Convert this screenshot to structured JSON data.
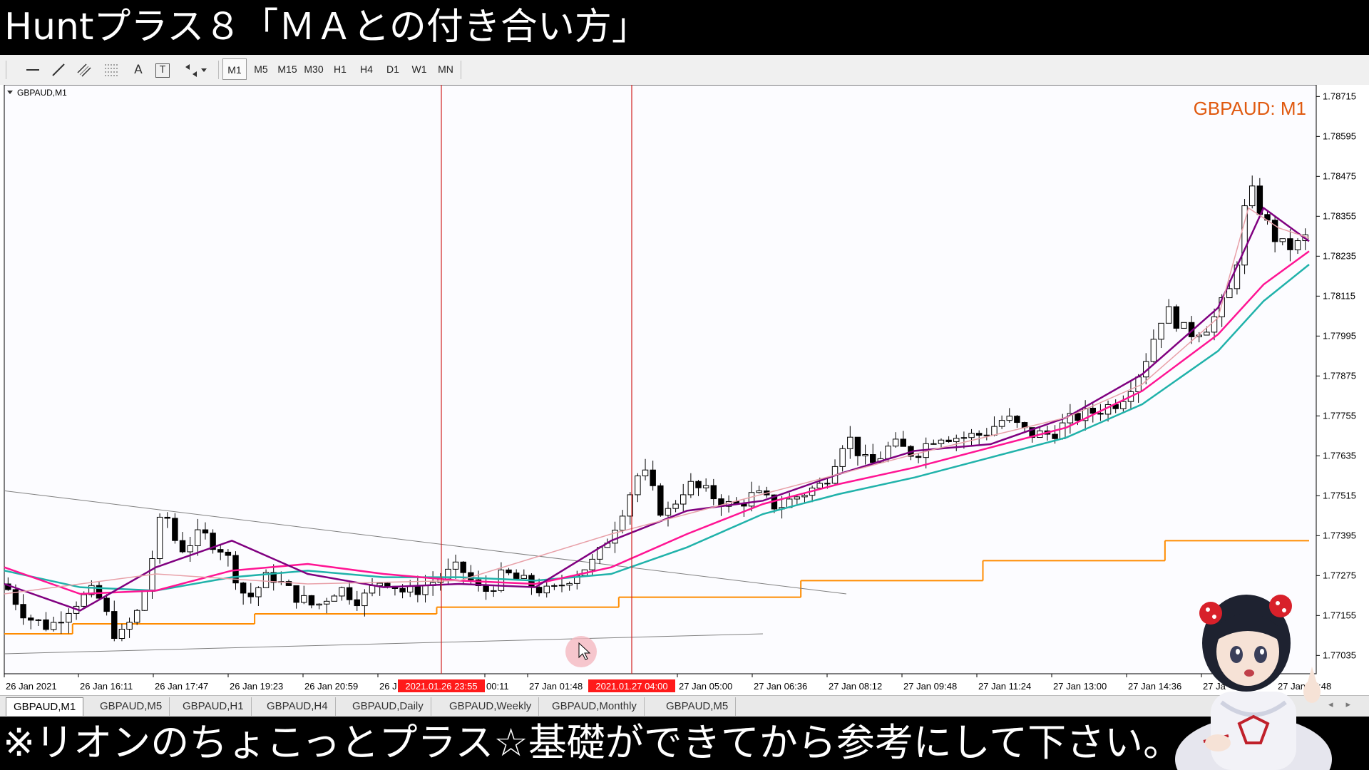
{
  "banner_top": "Huntプラス８「ＭＡとの付き合い方」",
  "banner_bottom": "※リオンのちょこっとプラス☆基礎ができてから参考にして下さい。",
  "toolbar": {
    "tools": [
      "cursor-icon",
      "horizontal-line-icon",
      "trendline-icon",
      "channel-icon",
      "fibonacci-icon",
      "text-icon",
      "text-label-icon",
      "arrows-icon"
    ],
    "text_tool": "A",
    "label_tool": "T",
    "timeframes": [
      "M1",
      "M5",
      "M15",
      "M30",
      "H1",
      "H4",
      "D1",
      "W1",
      "MN"
    ],
    "active_timeframe": "M1"
  },
  "chart_window_title": "GBPAUD,M1",
  "tabs": [
    "GBPAUD,M1",
    "GBPAUD,M5",
    "GBPAUD,H1",
    "GBPAUD,H4",
    "GBPAUD,Daily",
    "GBPAUD,Weekly",
    "GBPAUD,Monthly",
    "GBPAUD,M5"
  ],
  "active_tab": 0,
  "colors": {
    "candles": "#000000",
    "ma_fast": "#e8a0a8",
    "ma_mid": "#800080",
    "ma_slow": "#ff1493",
    "ma_slowest": "#20b2aa",
    "daily_open": "#ff8c00",
    "vline": "#d02020",
    "trendline": "#808080",
    "symbol_label": "#e05a10",
    "highlight_label_bg": "#ff1a1a"
  },
  "chart_data": {
    "type": "candlestick",
    "symbol": "GBPAUD",
    "timeframe": "M1",
    "symbol_label": "GBPAUD: M1",
    "ylim": [
      1.7698,
      1.7875
    ],
    "y_ticks": [
      "1.78715",
      "1.78595",
      "1.78475",
      "1.78355",
      "1.78235",
      "1.78115",
      "1.77995",
      "1.77875",
      "1.77755",
      "1.77635",
      "1.77515",
      "1.77395",
      "1.77275",
      "1.77155",
      "1.77035"
    ],
    "x_ticks": [
      "26 Jan 2021",
      "26 Jan 16:11",
      "26 Jan 17:47",
      "26 Jan 19:23",
      "26 Jan 20:59",
      "26 J",
      "00:11",
      "27 Jan 01:48",
      "27 Jan 05:00",
      "27 Jan 06:36",
      "27 Jan 08:12",
      "27 Jan 09:48",
      "27 Jan 11:24",
      "27 Jan 13:00",
      "27 Jan 14:36",
      "27 Ja",
      "27 Jan 17:48"
    ],
    "highlighted_times": [
      "2021.01.26 23:55",
      "2021.01.27 04:00"
    ],
    "price_path": [
      [
        0,
        1.7725
      ],
      [
        3,
        1.7715
      ],
      [
        6,
        1.7712
      ],
      [
        9,
        1.7719
      ],
      [
        12,
        1.7723
      ],
      [
        15,
        1.7708
      ],
      [
        18,
        1.7718
      ],
      [
        21,
        1.7748
      ],
      [
        23,
        1.7735
      ],
      [
        26,
        1.774
      ],
      [
        29,
        1.7735
      ],
      [
        32,
        1.772
      ],
      [
        35,
        1.7728
      ],
      [
        38,
        1.7722
      ],
      [
        41,
        1.7718
      ],
      [
        44,
        1.7724
      ],
      [
        47,
        1.772
      ],
      [
        50,
        1.7727
      ],
      [
        53,
        1.7722
      ],
      [
        56,
        1.7725
      ],
      [
        60,
        1.773
      ],
      [
        63,
        1.7722
      ],
      [
        66,
        1.7728
      ],
      [
        69,
        1.7725
      ],
      [
        72,
        1.7722
      ],
      [
        75,
        1.7728
      ],
      [
        78,
        1.7732
      ],
      [
        81,
        1.7745
      ],
      [
        84,
        1.776
      ],
      [
        87,
        1.7745
      ],
      [
        90,
        1.7755
      ],
      [
        93,
        1.7752
      ],
      [
        96,
        1.7748
      ],
      [
        99,
        1.7752
      ],
      [
        102,
        1.7748
      ],
      [
        105,
        1.7752
      ],
      [
        108,
        1.7755
      ],
      [
        111,
        1.777
      ],
      [
        114,
        1.776
      ],
      [
        117,
        1.7767
      ],
      [
        120,
        1.7764
      ],
      [
        123,
        1.777
      ],
      [
        126,
        1.7769
      ],
      [
        129,
        1.777
      ],
      [
        132,
        1.7775
      ],
      [
        135,
        1.777
      ],
      [
        138,
        1.777
      ],
      [
        141,
        1.7775
      ],
      [
        144,
        1.7777
      ],
      [
        147,
        1.778
      ],
      [
        150,
        1.779
      ],
      [
        153,
        1.7808
      ],
      [
        156,
        1.78
      ],
      [
        159,
        1.7803
      ],
      [
        162,
        1.7815
      ],
      [
        164,
        1.7845
      ],
      [
        166,
        1.7835
      ],
      [
        168,
        1.7827
      ],
      [
        170,
        1.7826
      ],
      [
        172,
        1.783
      ]
    ],
    "ma_fast": [
      [
        0,
        1.7722
      ],
      [
        20,
        1.7728
      ],
      [
        40,
        1.7725
      ],
      [
        60,
        1.7726
      ],
      [
        80,
        1.774
      ],
      [
        100,
        1.7752
      ],
      [
        120,
        1.7764
      ],
      [
        140,
        1.7775
      ],
      [
        150,
        1.7785
      ],
      [
        160,
        1.7805
      ],
      [
        164,
        1.7838
      ],
      [
        168,
        1.7832
      ],
      [
        172,
        1.7829
      ]
    ],
    "ma_mid": [
      [
        0,
        1.7725
      ],
      [
        10,
        1.7717
      ],
      [
        20,
        1.773
      ],
      [
        30,
        1.7738
      ],
      [
        40,
        1.7728
      ],
      [
        50,
        1.7724
      ],
      [
        60,
        1.7725
      ],
      [
        70,
        1.7724
      ],
      [
        80,
        1.7738
      ],
      [
        90,
        1.7747
      ],
      [
        100,
        1.775
      ],
      [
        110,
        1.7758
      ],
      [
        120,
        1.7765
      ],
      [
        130,
        1.7767
      ],
      [
        140,
        1.7775
      ],
      [
        150,
        1.7788
      ],
      [
        160,
        1.7808
      ],
      [
        166,
        1.7838
      ],
      [
        172,
        1.7828
      ]
    ],
    "ma_slow": [
      [
        0,
        1.773
      ],
      [
        10,
        1.7722
      ],
      [
        20,
        1.7723
      ],
      [
        30,
        1.7729
      ],
      [
        40,
        1.7731
      ],
      [
        50,
        1.7728
      ],
      [
        60,
        1.7726
      ],
      [
        70,
        1.7725
      ],
      [
        80,
        1.773
      ],
      [
        90,
        1.774
      ],
      [
        100,
        1.7749
      ],
      [
        110,
        1.7755
      ],
      [
        120,
        1.776
      ],
      [
        130,
        1.7766
      ],
      [
        140,
        1.7772
      ],
      [
        150,
        1.7783
      ],
      [
        160,
        1.78
      ],
      [
        166,
        1.7815
      ],
      [
        172,
        1.7825
      ]
    ],
    "ma_slowest": [
      [
        0,
        1.7729
      ],
      [
        10,
        1.7724
      ],
      [
        20,
        1.7723
      ],
      [
        30,
        1.7727
      ],
      [
        40,
        1.7729
      ],
      [
        50,
        1.7727
      ],
      [
        60,
        1.7727
      ],
      [
        70,
        1.7726
      ],
      [
        80,
        1.7728
      ],
      [
        90,
        1.7736
      ],
      [
        100,
        1.7746
      ],
      [
        110,
        1.7752
      ],
      [
        120,
        1.7757
      ],
      [
        130,
        1.7763
      ],
      [
        140,
        1.7769
      ],
      [
        150,
        1.7779
      ],
      [
        160,
        1.7795
      ],
      [
        166,
        1.781
      ],
      [
        172,
        1.7821
      ]
    ],
    "daily_open_steps": [
      [
        0,
        9,
        1.771
      ],
      [
        9,
        33,
        1.7713
      ],
      [
        33,
        57,
        1.7716
      ],
      [
        57,
        81,
        1.7718
      ],
      [
        81,
        105,
        1.7721
      ],
      [
        105,
        129,
        1.7726
      ],
      [
        129,
        153,
        1.7732
      ],
      [
        153,
        172,
        1.7738
      ]
    ],
    "trendlines": [
      [
        [
          0,
          1.7753
        ],
        [
          111,
          1.7722
        ]
      ],
      [
        [
          0,
          1.7704
        ],
        [
          100,
          1.771
        ]
      ]
    ]
  }
}
